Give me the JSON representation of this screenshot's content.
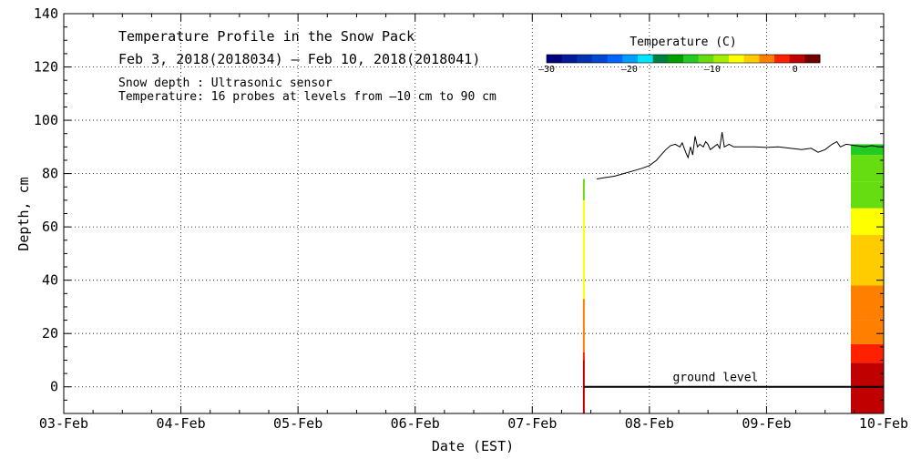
{
  "chart_data": {
    "type": "line",
    "title": "Temperature Profile in the Snow Pack",
    "date_range": "Feb  3, 2018(2018034) – Feb 10, 2018(2018041)",
    "info_lines": [
      "Snow depth : Ultrasonic sensor",
      "Temperature: 16 probes at levels from –10 cm to 90 cm"
    ],
    "xlabel": "Date (EST)",
    "ylabel": "Depth, cm",
    "x_categories": [
      "03-Feb",
      "04-Feb",
      "05-Feb",
      "06-Feb",
      "07-Feb",
      "08-Feb",
      "09-Feb",
      "10-Feb"
    ],
    "xlim": [
      0,
      7
    ],
    "ylim": [
      -10,
      140
    ],
    "y_ticks": [
      0,
      20,
      40,
      60,
      80,
      100,
      120,
      140
    ],
    "grid": true,
    "ground_level_label": "ground level",
    "ground_level": {
      "x_start": 4.44,
      "x_end": 7.0,
      "y": 0
    },
    "colorbar": {
      "title": "Temperature (C)",
      "range": [
        -30,
        3
      ],
      "ticks": [
        -30,
        -20,
        -10,
        0
      ],
      "colors": [
        "#000080",
        "#001a99",
        "#0033b3",
        "#0047d1",
        "#0066ff",
        "#009fff",
        "#00e5ff",
        "#008040",
        "#00a000",
        "#22cc22",
        "#66dd11",
        "#a6ee00",
        "#ffff00",
        "#ffcc00",
        "#ff8000",
        "#ff2000",
        "#c00000",
        "#700000"
      ]
    },
    "series": [
      {
        "name": "Snow depth",
        "color": "#000000",
        "points": [
          [
            4.55,
            78.0
          ],
          [
            4.62,
            78.5
          ],
          [
            4.7,
            79.0
          ],
          [
            4.78,
            80.0
          ],
          [
            4.86,
            81.0
          ],
          [
            4.94,
            82.0
          ],
          [
            5.0,
            83.0
          ],
          [
            5.06,
            85.0
          ],
          [
            5.1,
            87.0
          ],
          [
            5.14,
            89.0
          ],
          [
            5.18,
            90.5
          ],
          [
            5.22,
            91.0
          ],
          [
            5.26,
            90.0
          ],
          [
            5.28,
            91.5
          ],
          [
            5.31,
            88.0
          ],
          [
            5.33,
            86.0
          ],
          [
            5.35,
            90.0
          ],
          [
            5.37,
            87.0
          ],
          [
            5.39,
            94.0
          ],
          [
            5.41,
            90.0
          ],
          [
            5.43,
            91.0
          ],
          [
            5.46,
            90.0
          ],
          [
            5.48,
            92.0
          ],
          [
            5.5,
            91.0
          ],
          [
            5.52,
            89.0
          ],
          [
            5.55,
            90.0
          ],
          [
            5.58,
            91.0
          ],
          [
            5.6,
            89.5
          ],
          [
            5.62,
            95.5
          ],
          [
            5.64,
            90.0
          ],
          [
            5.68,
            91.0
          ],
          [
            5.72,
            90.0
          ],
          [
            5.8,
            90.0
          ],
          [
            5.9,
            90.0
          ],
          [
            6.0,
            89.8
          ],
          [
            6.1,
            90.0
          ],
          [
            6.2,
            89.5
          ],
          [
            6.3,
            89.0
          ],
          [
            6.38,
            89.5
          ],
          [
            6.44,
            88.0
          ],
          [
            6.5,
            89.0
          ],
          [
            6.56,
            91.0
          ],
          [
            6.6,
            92.0
          ],
          [
            6.63,
            90.0
          ],
          [
            6.68,
            91.0
          ],
          [
            6.76,
            90.5
          ],
          [
            6.84,
            90.0
          ],
          [
            6.9,
            90.5
          ],
          [
            6.96,
            90.0
          ],
          [
            7.0,
            90.0
          ]
        ]
      }
    ],
    "temperature_profiles": [
      {
        "x": 4.44,
        "bands": [
          {
            "from": -10,
            "to": 10,
            "temp": -0.5
          },
          {
            "from": 10,
            "to": 13,
            "temp": -1.5
          },
          {
            "from": 13,
            "to": 33,
            "temp": -4
          },
          {
            "from": 33,
            "to": 70,
            "temp": -7
          },
          {
            "from": 70,
            "to": 78,
            "temp": -11
          }
        ]
      },
      {
        "x_start": 6.72,
        "x_end": 7.0,
        "bands": [
          {
            "from": -10,
            "to": 9,
            "temp": 0
          },
          {
            "from": 9,
            "to": 16,
            "temp": -1.5
          },
          {
            "from": 16,
            "to": 25,
            "temp": -3
          },
          {
            "from": 25,
            "to": 38,
            "temp": -4
          },
          {
            "from": 38,
            "to": 57,
            "temp": -6
          },
          {
            "from": 57,
            "to": 67,
            "temp": -8
          },
          {
            "from": 67,
            "to": 77,
            "temp": -10
          },
          {
            "from": 77,
            "to": 87,
            "temp": -11
          },
          {
            "from": 87,
            "to": 91,
            "temp": -12
          }
        ]
      }
    ]
  }
}
